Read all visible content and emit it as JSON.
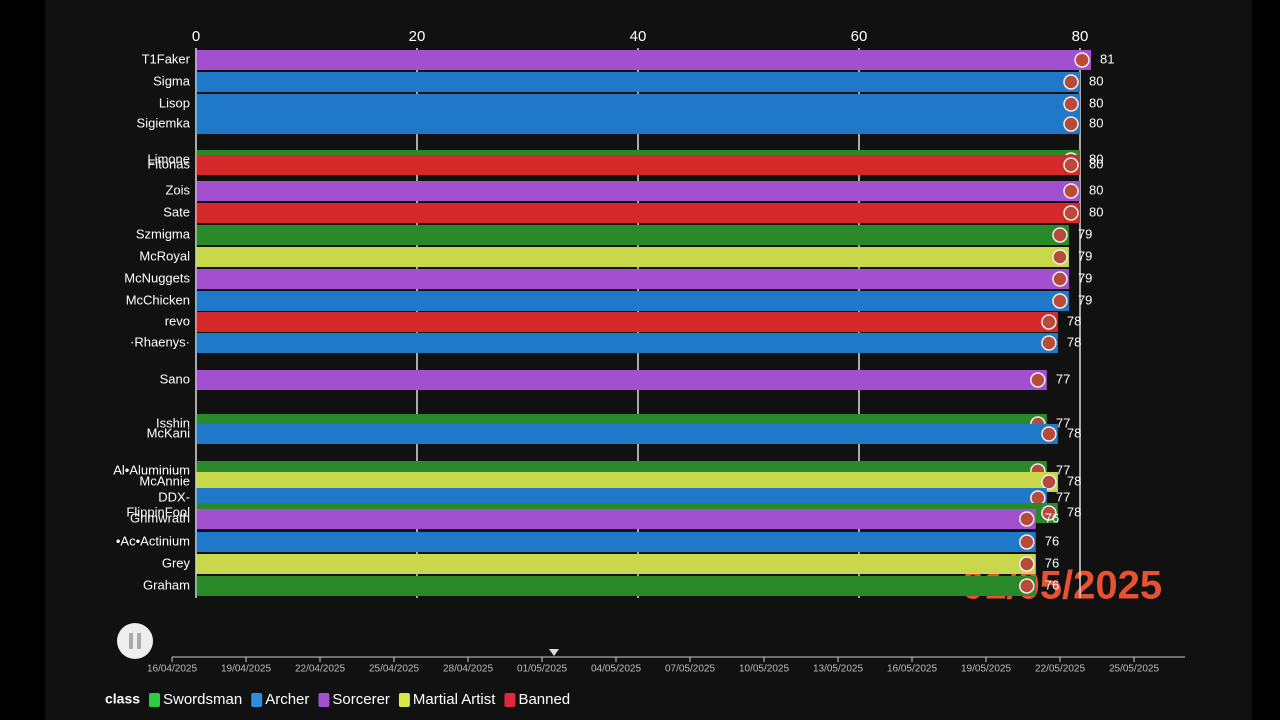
{
  "chart_data": {
    "type": "bar",
    "orientation": "horizontal",
    "categories": [
      "T1Faker",
      "Sigma",
      "Lisop",
      "Sigiemka",
      "Limone",
      "Fitonas",
      "Zois",
      "Sate",
      "Szmigma",
      "McRoyal",
      "McNuggets",
      "McChicken",
      "revo",
      "·Rhaenys·",
      "Sano",
      "Isshin",
      "McKani",
      "Al•Aluminium",
      "McAnnie",
      "DDX-",
      "FlippinFool",
      "Grimwrath",
      "•Ac•Actinium",
      "Grey",
      "Graham"
    ],
    "values": [
      81,
      80,
      80,
      80,
      80,
      80,
      80,
      80,
      79,
      79,
      79,
      79,
      78,
      78,
      77,
      77,
      78,
      77,
      78,
      77,
      78,
      76,
      76,
      76,
      76
    ],
    "colors": [
      "#a24fd0",
      "#1f78c8",
      "#1f78c8",
      "#1f78c8",
      "#2a8a2a",
      "#d42a2a",
      "#a24fd0",
      "#d42a2a",
      "#2a8a2a",
      "#c8d84a",
      "#a24fd0",
      "#1f78c8",
      "#d42a2a",
      "#1f78c8",
      "#a24fd0",
      "#2a8a2a",
      "#1f78c8",
      "#2a8a2a",
      "#c8d84a",
      "#1f78c8",
      "#2a8a2a",
      "#a24fd0",
      "#1f78c8",
      "#c8d84a",
      "#2a8a2a"
    ],
    "xlim": [
      0,
      80
    ],
    "xticks": [
      0,
      20,
      40,
      60,
      80
    ],
    "grid": true,
    "date_label": "01/05/2025",
    "timeline": [
      "16/04/2025",
      "19/04/2025",
      "22/04/2025",
      "25/04/2025",
      "28/04/2025",
      "01/05/2025",
      "04/05/2025",
      "07/05/2025",
      "10/05/2025",
      "13/05/2025",
      "16/05/2025",
      "19/05/2025",
      "22/05/2025",
      "25/05/2025"
    ],
    "legend": {
      "title": "class",
      "items": [
        {
          "name": "Swordsman",
          "color": "#2ecc40"
        },
        {
          "name": "Archer",
          "color": "#2a8fe0"
        },
        {
          "name": "Sorcerer",
          "color": "#a24fd0"
        },
        {
          "name": "Martial Artist",
          "color": "#d8e84a"
        },
        {
          "name": "Banned",
          "color": "#e0283a"
        }
      ]
    }
  }
}
